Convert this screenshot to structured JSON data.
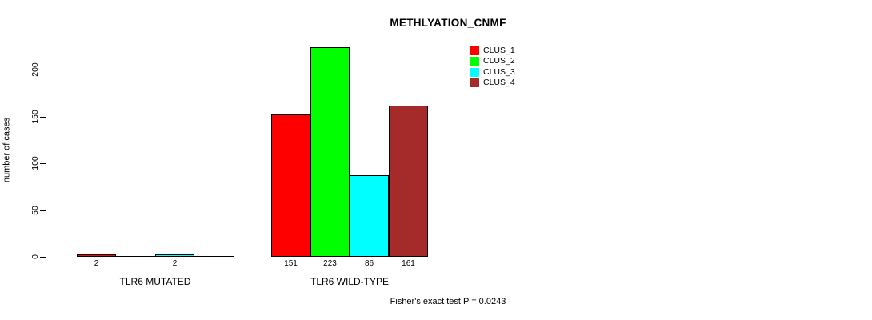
{
  "chart_data": {
    "type": "bar",
    "title": "METHLYATION_CNMF",
    "ylabel": "number of cases",
    "xlabel": "",
    "footnote": "Fisher's exact test P = 0.0243",
    "ylim": [
      0,
      200
    ],
    "yticks": [
      0,
      50,
      100,
      150,
      200
    ],
    "grid": false,
    "legend_position": "top-right-inside",
    "background_color": "#ffffff",
    "axis_color": "#000000",
    "series": [
      {
        "name": "CLUS_1",
        "color": "#FF0000"
      },
      {
        "name": "CLUS_2",
        "color": "#00FF00"
      },
      {
        "name": "CLUS_3",
        "color": "#00FFFF"
      },
      {
        "name": "CLUS_4",
        "color": "#A52A2A"
      }
    ],
    "groups": [
      {
        "label": "TLR6 MUTATED",
        "values": [
          2,
          0,
          2,
          0
        ],
        "bar_labels": [
          "2",
          "",
          "2",
          ""
        ]
      },
      {
        "label": "TLR6 WILD-TYPE",
        "values": [
          151,
          223,
          86,
          161
        ],
        "bar_labels": [
          "151",
          "223",
          "86",
          "161"
        ]
      }
    ]
  }
}
